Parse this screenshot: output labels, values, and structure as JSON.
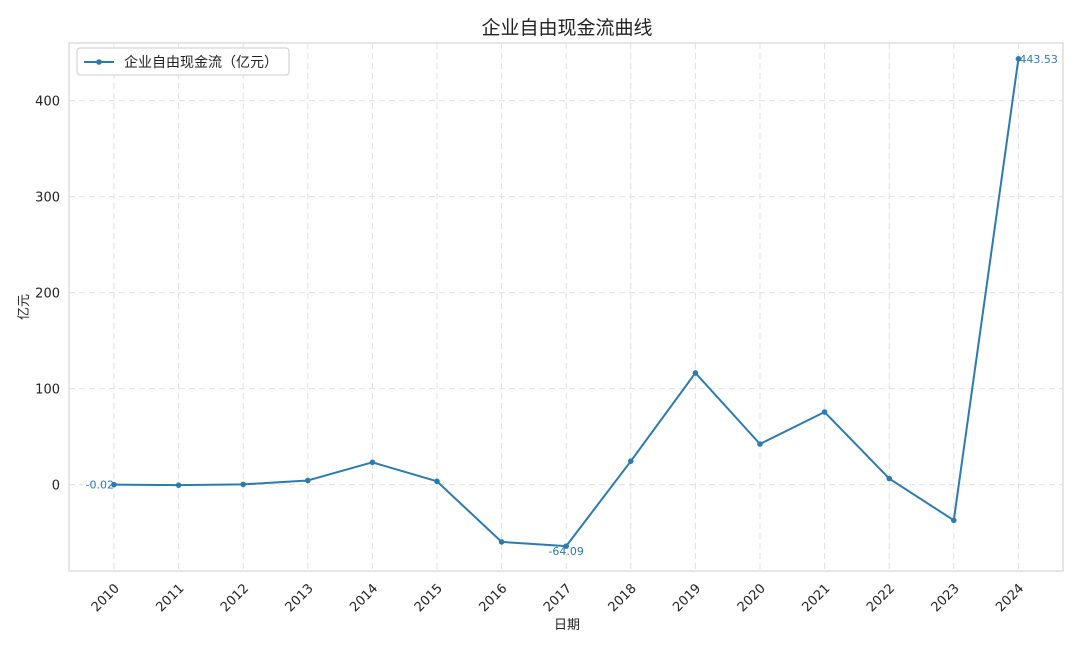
{
  "chart_data": {
    "type": "line",
    "title": "企业自由现金流曲线",
    "xlabel": "日期",
    "ylabel": "亿元",
    "categories": [
      "2010",
      "2011",
      "2012",
      "2013",
      "2014",
      "2015",
      "2016",
      "2017",
      "2018",
      "2019",
      "2020",
      "2021",
      "2022",
      "2023",
      "2024"
    ],
    "series": [
      {
        "name": "企业自由现金流（亿元）",
        "values": [
          -0.02,
          -0.6,
          0.2,
          4.3,
          23.2,
          3.4,
          -59.7,
          -64.09,
          24.4,
          116.3,
          42.3,
          75.6,
          6.3,
          -37.2,
          443.53
        ],
        "color": "#2c7bb0"
      }
    ],
    "ylim": [
      -90,
      460
    ],
    "yticks": [
      0,
      100,
      200,
      300,
      400
    ],
    "annotations": [
      {
        "x": "2010",
        "text": "-0.02"
      },
      {
        "x": "2017",
        "text": "-64.09"
      },
      {
        "x": "2024",
        "text": "443.53"
      }
    ],
    "grid": true,
    "legend_position": "top-left"
  }
}
